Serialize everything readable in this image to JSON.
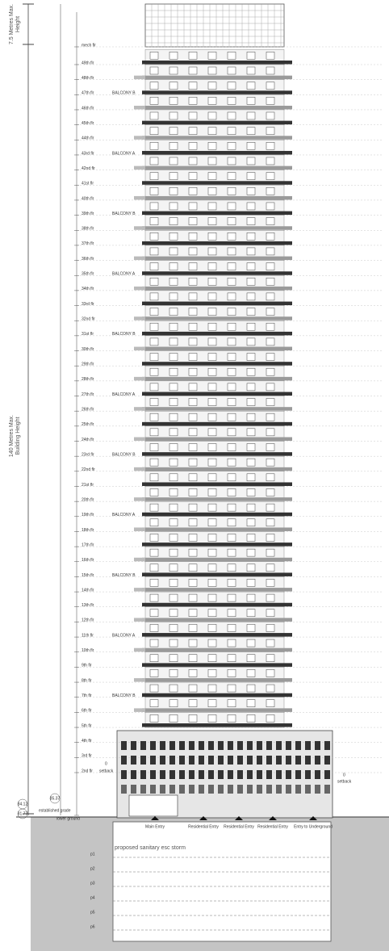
{
  "height_labels": [
    {
      "line1": "7.5 Metres Max.",
      "line2": "Height"
    },
    {
      "line1": "140 Metres Max.",
      "line2": "Building Height"
    }
  ],
  "floors": [
    "mech flr",
    "49th flr",
    "48th flr",
    "47th flr",
    "46th flr",
    "45th flr",
    "44th flr",
    "43rd flr",
    "42nd flr",
    "41st flr",
    "40th flr",
    "39th flr",
    "38th flr",
    "37th flr",
    "36th flr",
    "35th flr",
    "34th flr",
    "33rd flr",
    "32nd flr",
    "31st flr",
    "30th flr",
    "29th flr",
    "28th flr",
    "27th flr",
    "26th flr",
    "25th flr",
    "24th flr",
    "23rd flr",
    "22nd flr",
    "21st flr",
    "20th flr",
    "19th flr",
    "18th flr",
    "17th flr",
    "16th flr",
    "15th flr",
    "14th flr",
    "13th flr",
    "12th flr",
    "11th flr",
    "10th flr",
    "9th flr",
    "8th flr",
    "7th flr",
    "6th flr",
    "5th flr",
    "4th flr",
    "3rd flr",
    "2nd flr"
  ],
  "balconies": [
    "BALCONY B",
    "BALCONY A",
    "BALCONY B",
    "BALCONY A",
    "BALCONY B",
    "BALCONY A",
    "BALCONY B",
    "BALCONY A",
    "BALCONY B",
    "BALCONY A",
    "BALCONY B"
  ],
  "ground": {
    "lower_ground": "lower ground",
    "established_grade": "established grade",
    "setback": [
      "setback",
      "setback"
    ],
    "zero": [
      "0",
      "0"
    ],
    "elevations": [
      "85.37",
      "84.12",
      "81.77"
    ],
    "services": "proposed sanitary esc storm"
  },
  "entries": [
    "Main Entry",
    "Residential Entry",
    "Residential Entry",
    "Residential Entry",
    "Entry to Underground"
  ],
  "parking_levels": [
    "p1",
    "p2",
    "p3",
    "p4",
    "p5",
    "p6"
  ]
}
